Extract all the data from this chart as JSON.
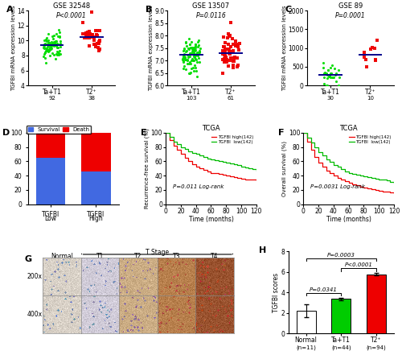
{
  "panel_A": {
    "title": "GSE 32548",
    "pval": "P<0.0001",
    "group1_label": "Ta+T1",
    "group1_n": "(n=92)",
    "group2_label": "T2⁺",
    "group2_n": "(n=38)",
    "group1_mean": 9.3,
    "group2_mean": 10.3,
    "group1_color": "#00dd00",
    "group2_color": "#ee0000",
    "ylim": [
      4,
      14
    ],
    "yticks": [
      4,
      6,
      8,
      10,
      12,
      14
    ],
    "ylabel": "TGFBI mRNA expression levels",
    "group1_std": 0.85,
    "group2_std": 0.9,
    "median_color": "#00008b"
  },
  "panel_B": {
    "title": "GSE 13507",
    "pval": "P=0.0116",
    "group1_label": "Ta+T1",
    "group1_n": "(n=103)",
    "group2_label": "T2⁺",
    "group2_n": "(n=61)",
    "group1_mean": 7.15,
    "group2_mean": 7.35,
    "group1_color": "#00dd00",
    "group2_color": "#ee0000",
    "ylim": [
      6.0,
      9.0
    ],
    "yticks": [
      6.0,
      6.5,
      7.0,
      7.5,
      8.0,
      8.5,
      9.0
    ],
    "ylabel": "TGFBI mRNA expression levels",
    "group1_std": 0.32,
    "group2_std": 0.38,
    "median_color": "#00008b"
  },
  "panel_C": {
    "title": "GSE 89",
    "pval": "P=0.0001",
    "group1_label": "Ta+T1",
    "group1_n": "(n=30)",
    "group2_label": "T2⁺",
    "group2_n": "(n=10)",
    "group1_mean": 280,
    "group2_mean": 850,
    "group1_color": "#00dd00",
    "group2_color": "#ee0000",
    "ylim": [
      0,
      2000
    ],
    "yticks": [
      0,
      500,
      1000,
      1500,
      2000
    ],
    "ylabel": "TGFBI mRNA expression levels",
    "group1_std": 160,
    "group2_std": 350,
    "median_color": "#00008b"
  },
  "panel_D": {
    "tgfbi_low_survival": 65,
    "tgfbi_low_death": 35,
    "tgfbi_high_survival": 46,
    "tgfbi_high_death": 54,
    "survival_color": "#4169e1",
    "death_color": "#ee0000",
    "yticks": [
      0,
      20,
      40,
      60,
      80,
      100
    ]
  },
  "panel_E": {
    "title": "TCGA",
    "pval": "P=0.011 Log-rank",
    "legend_high": "TGFBI high(142)",
    "legend_low": "TGFBI  low(142)",
    "high_color": "#ee0000",
    "low_color": "#00bb00",
    "xlabel": "Time (months)",
    "ylabel": "Recurrence-free survival (%)",
    "xlim": [
      0,
      120
    ],
    "ylim": [
      0,
      100
    ],
    "xticks": [
      0,
      20,
      40,
      60,
      80,
      100,
      120
    ],
    "high_curve_x": [
      0,
      5,
      10,
      15,
      20,
      25,
      30,
      35,
      40,
      45,
      50,
      55,
      60,
      65,
      70,
      75,
      80,
      85,
      90,
      95,
      100,
      105,
      110,
      115,
      120
    ],
    "high_curve_y": [
      100,
      90,
      82,
      76,
      70,
      65,
      60,
      56,
      53,
      50,
      48,
      46,
      44,
      43,
      42,
      41,
      40,
      39,
      38,
      37,
      36,
      35,
      34,
      34,
      33
    ],
    "low_curve_x": [
      0,
      5,
      10,
      15,
      20,
      25,
      30,
      35,
      40,
      45,
      50,
      55,
      60,
      65,
      70,
      75,
      80,
      85,
      90,
      95,
      100,
      105,
      110,
      115,
      120
    ],
    "low_curve_y": [
      100,
      94,
      88,
      84,
      80,
      77,
      74,
      72,
      70,
      68,
      66,
      64,
      63,
      62,
      60,
      59,
      58,
      57,
      56,
      55,
      53,
      51,
      50,
      49,
      47
    ]
  },
  "panel_F": {
    "title": "TCGA",
    "pval": "P=0.0031 Log-rank",
    "legend_high": "TGFBI high(142)",
    "legend_low": "TGFBI  low(142)",
    "high_color": "#ee0000",
    "low_color": "#00bb00",
    "xlabel": "Time (months)",
    "ylabel": "Overall survival (%)",
    "xlim": [
      0,
      120
    ],
    "ylim": [
      0,
      100
    ],
    "xticks": [
      0,
      20,
      40,
      60,
      80,
      100,
      120
    ],
    "high_curve_x": [
      0,
      5,
      10,
      15,
      20,
      25,
      30,
      35,
      40,
      45,
      50,
      55,
      60,
      65,
      70,
      75,
      80,
      85,
      90,
      95,
      100,
      105,
      110,
      115,
      120
    ],
    "high_curve_y": [
      100,
      88,
      76,
      66,
      58,
      52,
      47,
      43,
      40,
      37,
      34,
      32,
      30,
      28,
      26,
      24,
      23,
      22,
      21,
      20,
      19,
      18,
      17,
      16,
      15
    ],
    "low_curve_x": [
      0,
      5,
      10,
      15,
      20,
      25,
      30,
      35,
      40,
      45,
      50,
      55,
      60,
      65,
      70,
      75,
      80,
      85,
      90,
      95,
      100,
      105,
      110,
      115,
      120
    ],
    "low_curve_y": [
      100,
      93,
      86,
      79,
      73,
      68,
      63,
      59,
      55,
      52,
      49,
      46,
      44,
      42,
      41,
      40,
      39,
      38,
      37,
      36,
      35,
      34,
      33,
      31,
      30
    ]
  },
  "panel_G": {
    "cols": [
      "Normal",
      "T1",
      "T2",
      "T3",
      "T4"
    ],
    "rows": [
      "200x",
      "400x"
    ],
    "t_stage_label": "T Stage",
    "ihc_colors_bg": [
      "#d4c8b8",
      "#d4c8b8",
      "#c8a878",
      "#b07840",
      "#905020"
    ],
    "ihc_colors_fg": [
      "#6080b0",
      "#6080b0",
      "#8060a0",
      "#b04020",
      "#c03010"
    ]
  },
  "panel_H": {
    "categories": [
      "Normal",
      "Ta+T1",
      "T2⁺"
    ],
    "n_labels": [
      "(n=11)",
      "(n=44)",
      "(n=94)"
    ],
    "values": [
      2.2,
      3.35,
      5.75
    ],
    "errors": [
      0.65,
      0.12,
      0.12
    ],
    "colors": [
      "#ffffff",
      "#00cc00",
      "#ee0000"
    ],
    "ylabel": "TGFBI scores",
    "ylim": [
      0,
      8
    ],
    "yticks": [
      0,
      2,
      4,
      6,
      8
    ],
    "pval_01": "P=0.0341",
    "pval_12": "P<0.0001",
    "pval_02": "P=0.0003",
    "edge_color": "#000000"
  },
  "bg": "#ffffff",
  "fs": 5.5,
  "lfs": 8
}
